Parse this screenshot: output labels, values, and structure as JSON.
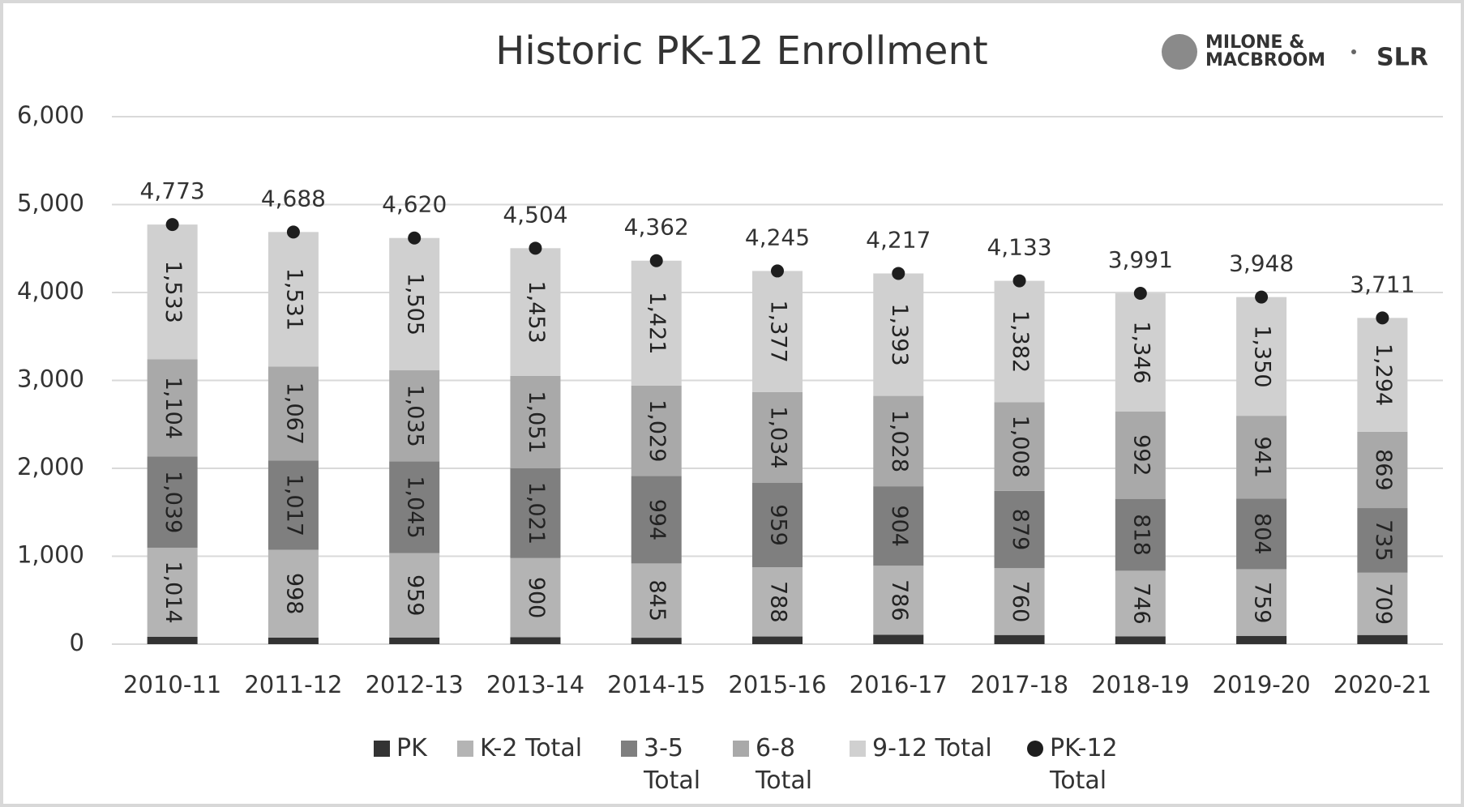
{
  "chart_data": {
    "type": "stacked_bar",
    "title": "Historic PK-12 Enrollment",
    "logo_text": [
      "MILONE &",
      "MACBROOM"
    ],
    "logo_brand": "SLR",
    "categories": [
      "2010-11",
      "2011-12",
      "2012-13",
      "2013-14",
      "2014-15",
      "2015-16",
      "2016-17",
      "2017-18",
      "2018-19",
      "2019-20",
      "2020-21"
    ],
    "series": [
      {
        "name": "PK",
        "color": "#333333",
        "values": [
          83,
          75,
          76,
          79,
          73,
          87,
          106,
          104,
          89,
          94,
          104
        ]
      },
      {
        "name": "K-2 Total",
        "color": "#b4b4b4",
        "values": [
          1014,
          998,
          959,
          900,
          845,
          788,
          786,
          760,
          746,
          759,
          709
        ],
        "value_labels": [
          "1,014",
          "998",
          "959",
          "900",
          "845",
          "788",
          "786",
          "760",
          "746",
          "759",
          "709"
        ]
      },
      {
        "name": "3-5 Total",
        "color": "#7f7f7f",
        "values": [
          1039,
          1017,
          1045,
          1021,
          994,
          959,
          904,
          879,
          818,
          804,
          735
        ],
        "value_labels": [
          "1,039",
          "1,017",
          "1,045",
          "1,021",
          "994",
          "959",
          "904",
          "879",
          "818",
          "804",
          "735"
        ]
      },
      {
        "name": "6-8 Total",
        "color": "#a9a9a9",
        "values": [
          1104,
          1067,
          1035,
          1051,
          1029,
          1034,
          1028,
          1008,
          992,
          941,
          869
        ],
        "value_labels": [
          "1,104",
          "1,067",
          "1,035",
          "1,051",
          "1,029",
          "1,034",
          "1,028",
          "1,008",
          "992",
          "941",
          "869"
        ]
      },
      {
        "name": "9-12 Total",
        "color": "#d0d0d0",
        "values": [
          1533,
          1531,
          1505,
          1453,
          1421,
          1377,
          1393,
          1382,
          1346,
          1350,
          1294
        ],
        "value_labels": [
          "1,533",
          "1,531",
          "1,505",
          "1,453",
          "1,421",
          "1,377",
          "1,393",
          "1,382",
          "1,346",
          "1,350",
          "1,294"
        ]
      },
      {
        "name": "PK-12 Total",
        "type": "marker",
        "color": "#1e1e1e",
        "values": [
          4773,
          4688,
          4620,
          4504,
          4362,
          4245,
          4217,
          4133,
          3991,
          3948,
          3711
        ],
        "value_labels": [
          "4,773",
          "4,688",
          "4,620",
          "4,504",
          "4,362",
          "4,245",
          "4,217",
          "4,133",
          "3,991",
          "3,948",
          "3,711"
        ]
      }
    ],
    "ylim": [
      0,
      6000
    ],
    "yticks": [
      0,
      {
        "value": 1000,
        "label": "1,000"
      },
      {
        "value": 2000,
        "label": "2,000"
      },
      {
        "value": 3000,
        "label": "3,000"
      },
      {
        "value": 4000,
        "label": "4,000"
      },
      {
        "value": 5000,
        "label": "5,000"
      },
      {
        "value": 6000,
        "label": "6,000"
      }
    ],
    "grid": true,
    "legend": "bottom"
  }
}
